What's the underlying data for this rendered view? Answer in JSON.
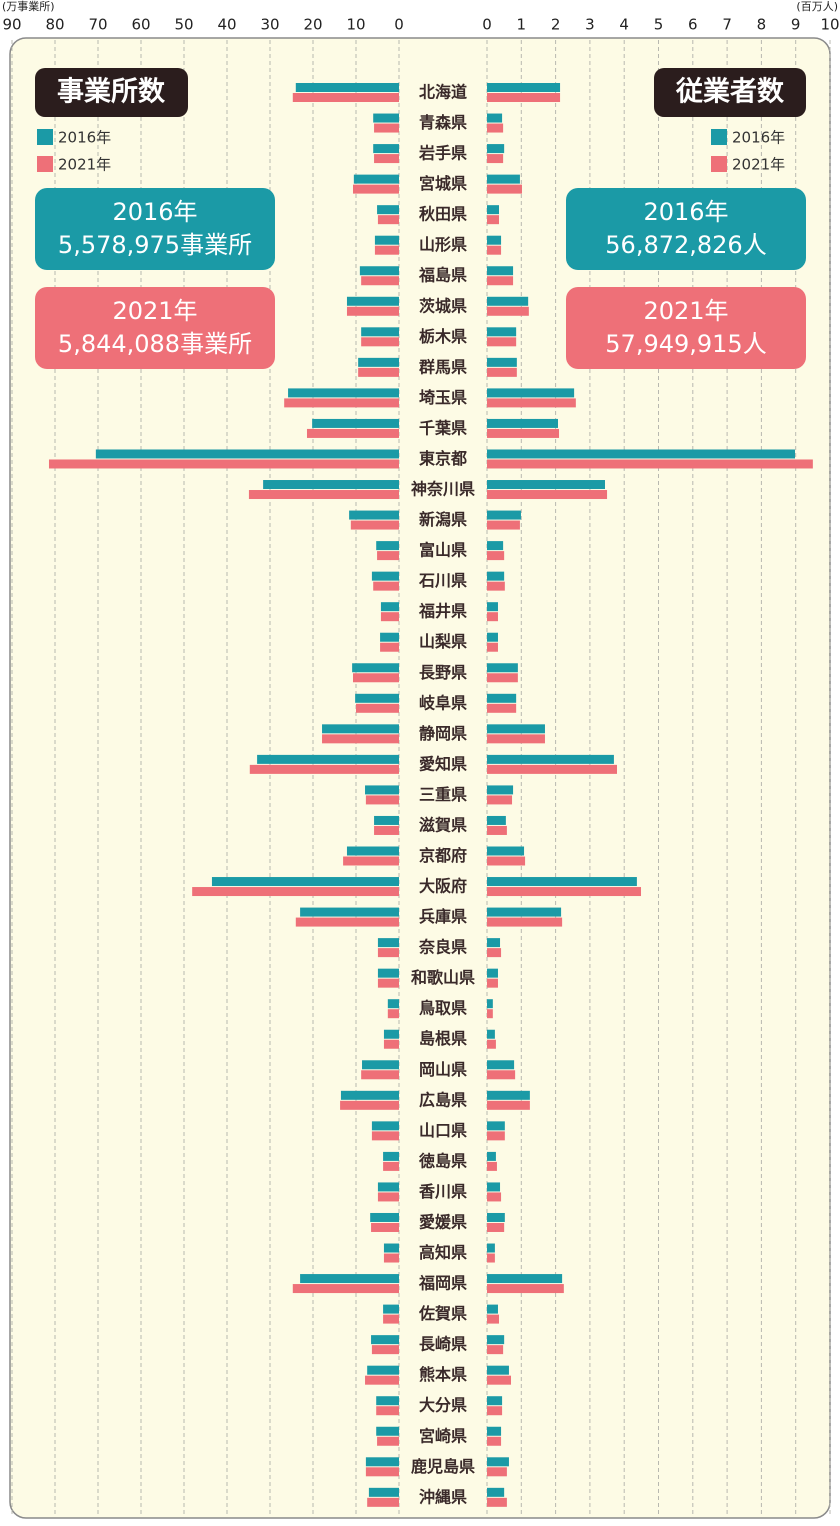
{
  "chart_data": {
    "type": "butterfly-bar",
    "categories": [
      "北海道",
      "青森県",
      "岩手県",
      "宮城県",
      "秋田県",
      "山形県",
      "福島県",
      "茨城県",
      "栃木県",
      "群馬県",
      "埼玉県",
      "千葉県",
      "東京都",
      "神奈川県",
      "新潟県",
      "富山県",
      "石川県",
      "福井県",
      "山梨県",
      "長野県",
      "岐阜県",
      "静岡県",
      "愛知県",
      "三重県",
      "滋賀県",
      "京都府",
      "大阪府",
      "兵庫県",
      "奈良県",
      "和歌山県",
      "鳥取県",
      "島根県",
      "岡山県",
      "広島県",
      "山口県",
      "徳島県",
      "香川県",
      "愛媛県",
      "高知県",
      "福岡県",
      "佐賀県",
      "長崎県",
      "熊本県",
      "大分県",
      "宮崎県",
      "鹿児島県",
      "沖縄県"
    ],
    "grid": true,
    "panels": [
      {
        "title": "事業所数",
        "unit": "(万事業所)",
        "xlim": [
          0,
          90
        ],
        "xticks": [
          0,
          10,
          20,
          30,
          40,
          50,
          60,
          70,
          80,
          90
        ],
        "series": [
          {
            "name": "2016年",
            "color": "#1b9aa6",
            "values": [
              24.0,
              6.0,
              6.0,
              10.5,
              5.1,
              5.6,
              9.1,
              12.1,
              8.8,
              9.5,
              25.8,
              20.2,
              70.5,
              31.6,
              11.6,
              5.3,
              6.3,
              4.2,
              4.4,
              10.9,
              10.2,
              17.9,
              33.0,
              7.9,
              5.8,
              12.1,
              43.5,
              23.0,
              4.9,
              4.9,
              2.6,
              3.5,
              8.6,
              13.5,
              6.3,
              3.7,
              4.9,
              6.7,
              3.5,
              23.0,
              3.7,
              6.5,
              7.4,
              5.3,
              5.3,
              7.7,
              7.0
            ]
          },
          {
            "name": "2021年",
            "color": "#ee7078",
            "values": [
              24.7,
              5.8,
              5.8,
              10.7,
              4.9,
              5.6,
              8.8,
              12.1,
              8.8,
              9.5,
              26.7,
              21.4,
              81.4,
              34.9,
              11.2,
              5.1,
              6.0,
              4.2,
              4.4,
              10.7,
              10.0,
              17.9,
              34.7,
              7.7,
              5.8,
              13.0,
              48.1,
              24.0,
              4.9,
              4.9,
              2.6,
              3.5,
              8.8,
              13.7,
              6.3,
              3.7,
              4.9,
              6.5,
              3.5,
              24.7,
              3.7,
              6.3,
              7.9,
              5.3,
              5.1,
              7.7,
              7.4
            ]
          }
        ],
        "totals": [
          {
            "label": "2016年",
            "text": "5,578,975事業所"
          },
          {
            "label": "2021年",
            "text": "5,844,088事業所"
          }
        ]
      },
      {
        "title": "従業者数",
        "unit": "(百万人)",
        "xlim": [
          0,
          10
        ],
        "xticks": [
          0,
          1,
          2,
          3,
          4,
          5,
          6,
          7,
          8,
          9,
          10
        ],
        "series": [
          {
            "name": "2016年",
            "color": "#1b9aa6",
            "values": [
              2.13,
              0.44,
              0.5,
              0.96,
              0.35,
              0.41,
              0.76,
              1.2,
              0.85,
              0.87,
              2.54,
              2.07,
              8.98,
              3.44,
              0.99,
              0.47,
              0.5,
              0.32,
              0.32,
              0.9,
              0.85,
              1.69,
              3.7,
              0.76,
              0.55,
              1.08,
              4.37,
              2.16,
              0.38,
              0.32,
              0.17,
              0.23,
              0.79,
              1.25,
              0.52,
              0.26,
              0.38,
              0.52,
              0.23,
              2.19,
              0.32,
              0.5,
              0.64,
              0.44,
              0.41,
              0.64,
              0.5
            ]
          },
          {
            "name": "2021年",
            "color": "#ee7078",
            "values": [
              2.13,
              0.47,
              0.47,
              1.02,
              0.35,
              0.41,
              0.76,
              1.22,
              0.85,
              0.87,
              2.59,
              2.1,
              9.5,
              3.5,
              0.96,
              0.5,
              0.52,
              0.32,
              0.32,
              0.9,
              0.85,
              1.69,
              3.79,
              0.73,
              0.58,
              1.11,
              4.49,
              2.19,
              0.41,
              0.32,
              0.17,
              0.26,
              0.82,
              1.25,
              0.52,
              0.29,
              0.41,
              0.5,
              0.23,
              2.24,
              0.35,
              0.47,
              0.7,
              0.44,
              0.41,
              0.58,
              0.58
            ]
          }
        ],
        "totals": [
          {
            "label": "2016年",
            "text": "56,872,826人"
          },
          {
            "label": "2021年",
            "text": "57,949,915人"
          }
        ]
      }
    ]
  }
}
